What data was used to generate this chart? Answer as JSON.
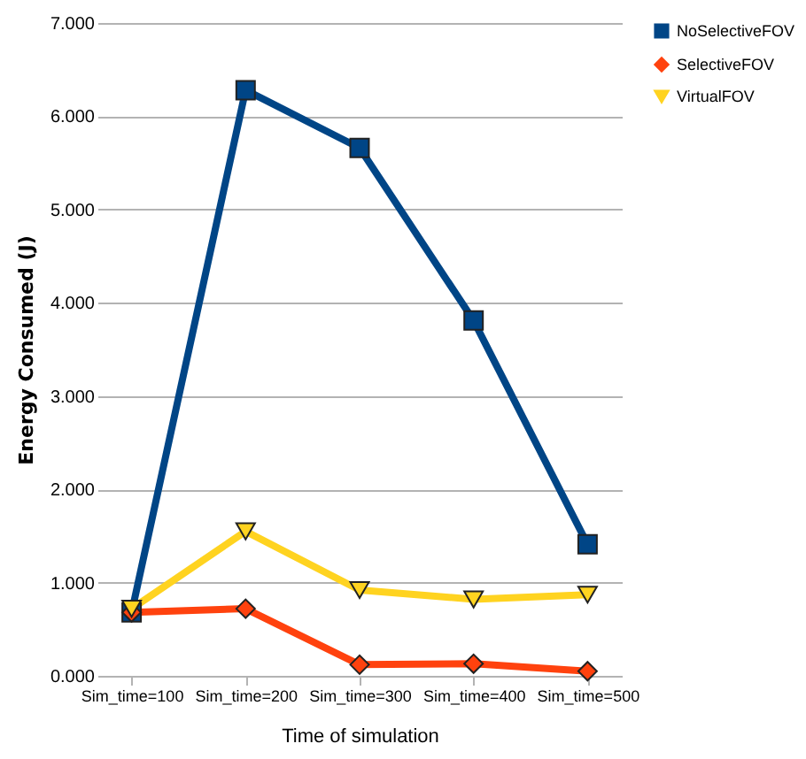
{
  "chart_data": {
    "type": "line",
    "xlabel": "Time of simulation",
    "ylabel": "Energy Consumed (J)",
    "categories": [
      "Sim_time=100",
      "Sim_time=200",
      "Sim_time=300",
      "Sim_time=400",
      "Sim_time=500"
    ],
    "series": [
      {
        "name": "NoSelectiveFOV",
        "color": "#004586",
        "marker": "square",
        "values": [
          0.68,
          6.28,
          5.66,
          3.81,
          1.41
        ]
      },
      {
        "name": "SelectiveFOV",
        "color": "#ff420e",
        "marker": "diamond",
        "values": [
          0.68,
          0.72,
          0.12,
          0.13,
          0.05
        ]
      },
      {
        "name": "VirtualFOV",
        "color": "#ffd320",
        "marker": "triangle-down",
        "values": [
          0.72,
          1.55,
          0.92,
          0.82,
          0.87
        ]
      }
    ],
    "ylim": [
      0,
      7
    ],
    "yticks": [
      {
        "value": 0,
        "label": "0.000"
      },
      {
        "value": 1,
        "label": "1.000"
      },
      {
        "value": 2,
        "label": "2.000"
      },
      {
        "value": 3,
        "label": "3.000"
      },
      {
        "value": 4,
        "label": "4.000"
      },
      {
        "value": 5,
        "label": "5.000"
      },
      {
        "value": 6,
        "label": "6.000"
      },
      {
        "value": 7,
        "label": "7.000"
      }
    ],
    "grid": "y",
    "legend": "right",
    "line_style": "solid"
  }
}
